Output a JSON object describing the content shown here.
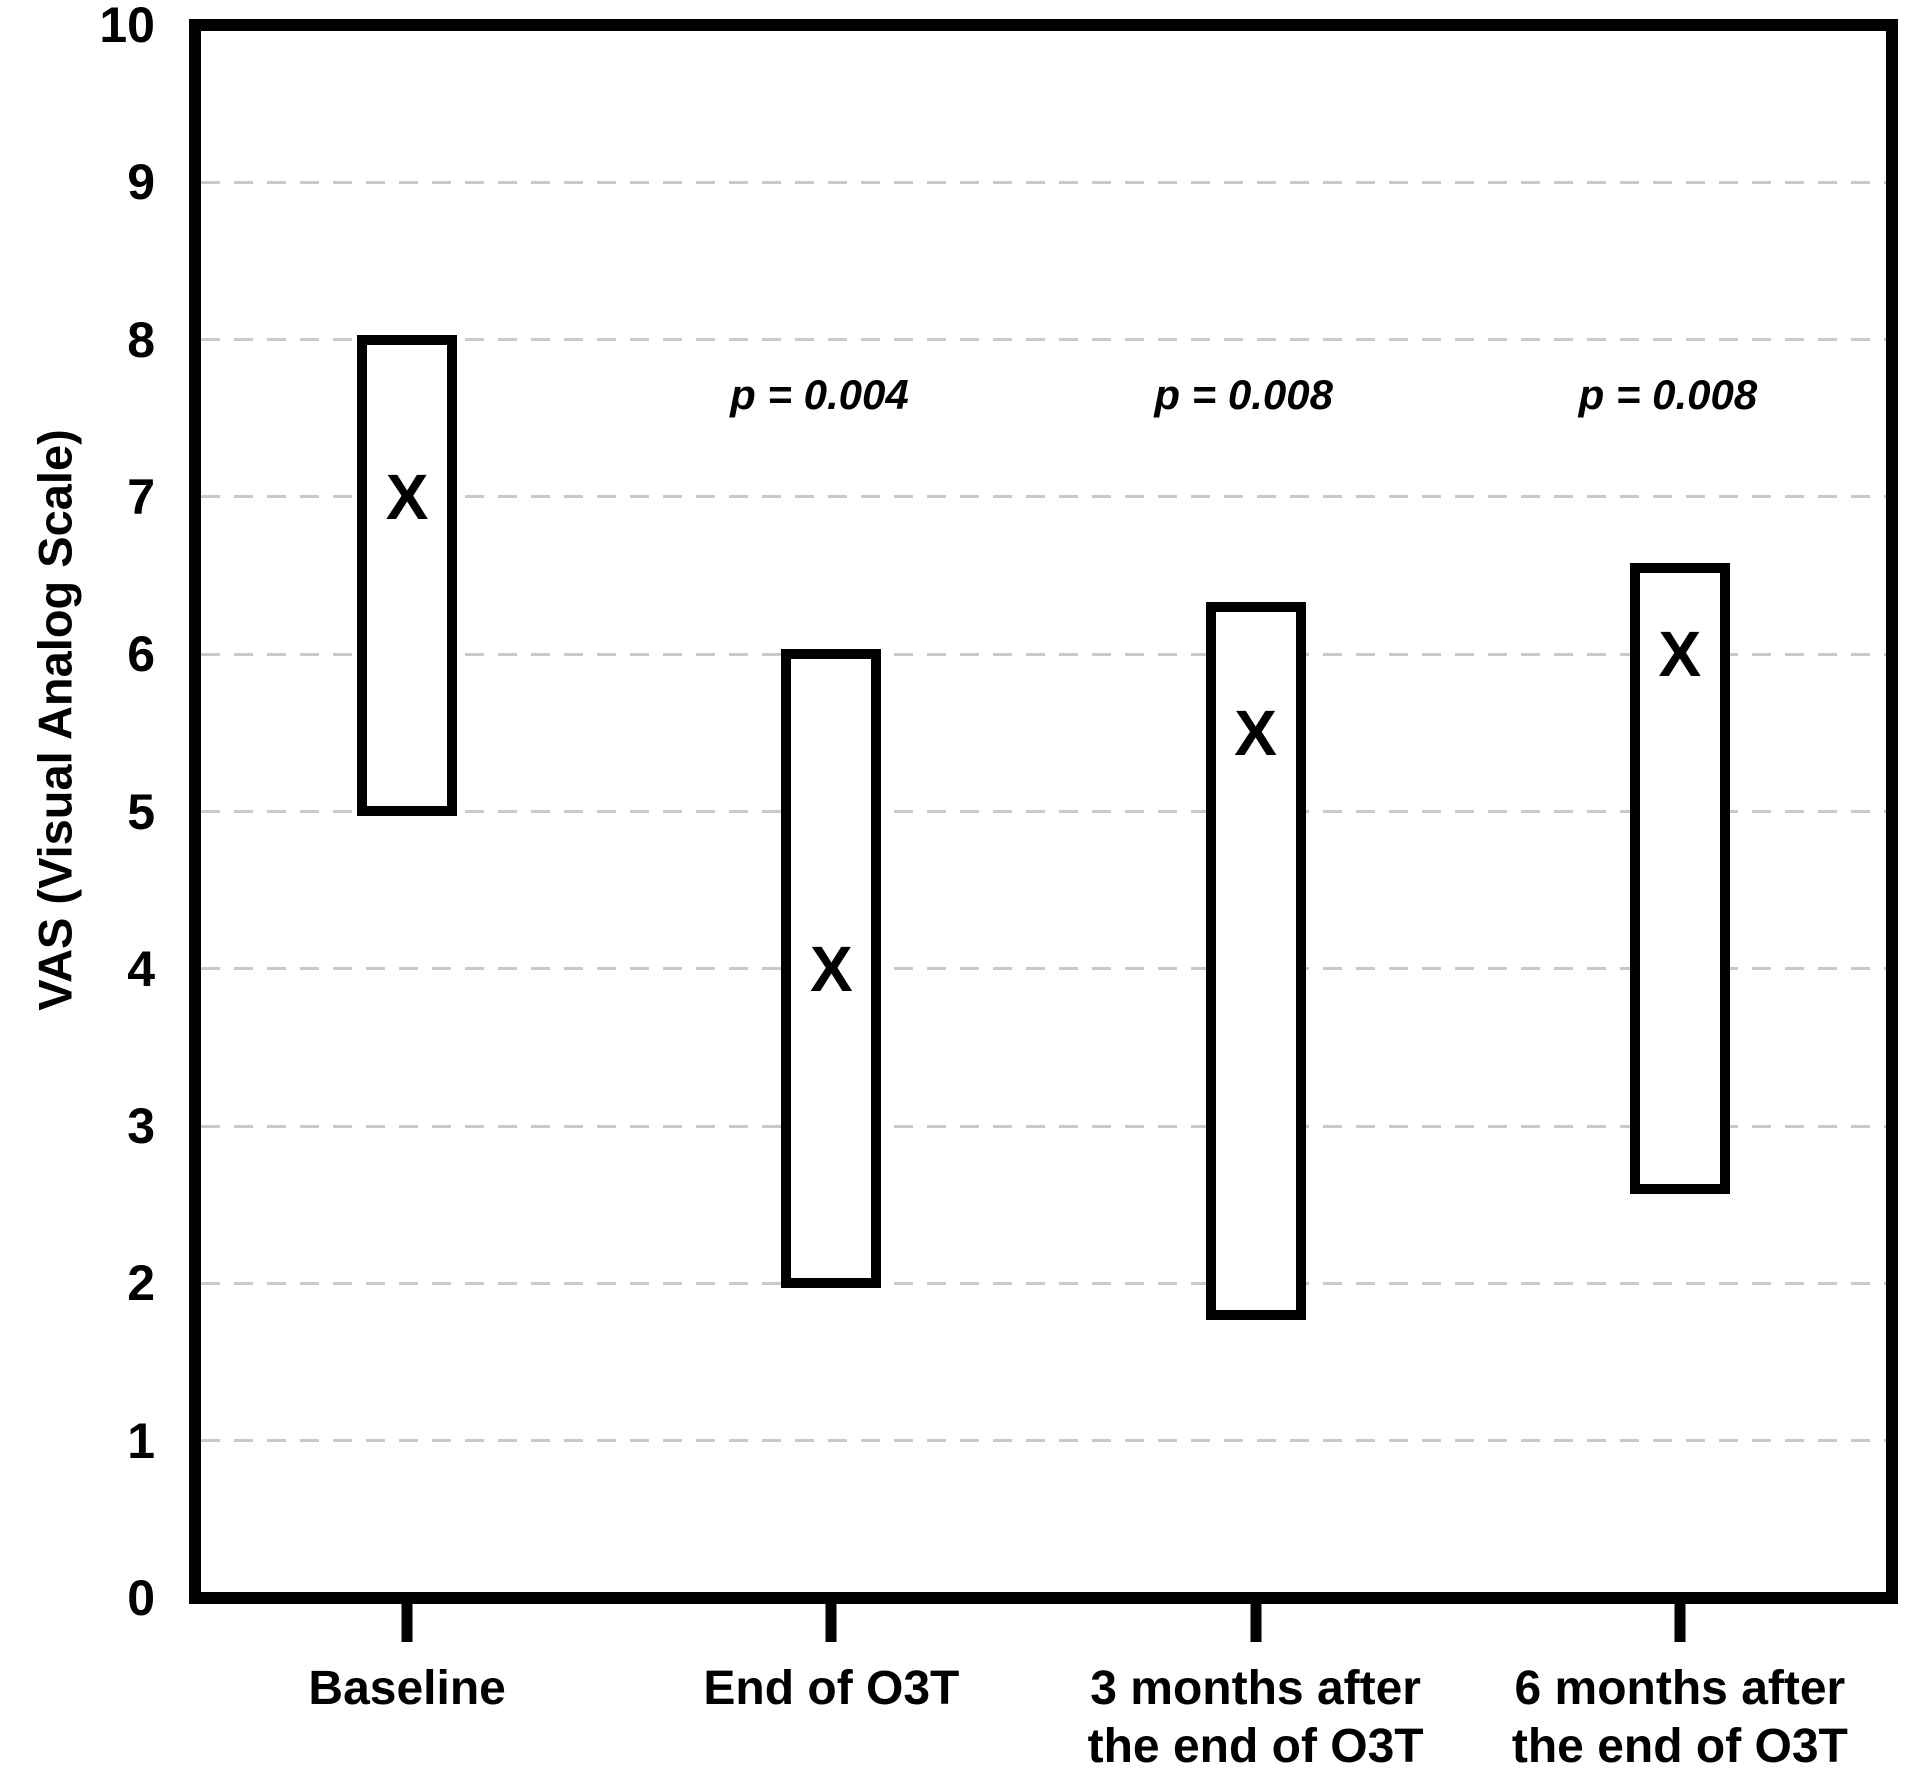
{
  "chart_data": {
    "type": "box",
    "title": "",
    "ylabel": "VAS (Visual Analog Scale)",
    "xlabel": "",
    "ylim": [
      0,
      10
    ],
    "yticks": [
      0,
      1,
      2,
      3,
      4,
      5,
      6,
      7,
      8,
      9,
      10
    ],
    "grid": {
      "axis": "y",
      "style": "dashed",
      "on": true
    },
    "legend": "none",
    "marker_glyph": "X",
    "categories": [
      "Baseline",
      "End of O3T",
      "3 months after\nthe end of O3T",
      "6 months after\nthe end of O3T"
    ],
    "boxes": [
      {
        "category": "Baseline",
        "low": 5.0,
        "high": 8.0,
        "marker": 7.0,
        "p_value_label": ""
      },
      {
        "category": "End of O3T",
        "low": 2.0,
        "high": 6.0,
        "marker": 4.0,
        "p_value_label": "p = 0.004"
      },
      {
        "category": "3 months after\nthe end of O3T",
        "low": 1.8,
        "high": 6.3,
        "marker": 5.5,
        "p_value_label": "p = 0.008"
      },
      {
        "category": "6 months after\nthe end of O3T",
        "low": 2.6,
        "high": 6.55,
        "marker": 6.0,
        "p_value_label": "p = 0.008"
      }
    ],
    "p_label_y": 7.65,
    "colors": {
      "box_border": "#000000",
      "axis": "#000000",
      "text": "#000000",
      "gridline": "#c9c9c9",
      "background": "#ffffff"
    }
  }
}
